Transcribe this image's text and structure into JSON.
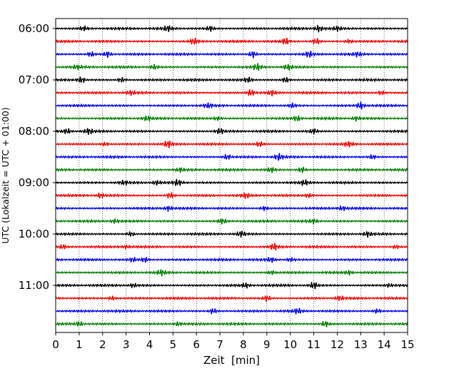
{
  "chart_data": {
    "type": "line",
    "xlabel": "Zeit  [min]",
    "ylabel": "UTC (Lokalzeit = UTC + 01:00)",
    "xlim": [
      0,
      15
    ],
    "x_ticks": [
      "0",
      "1",
      "2",
      "3",
      "4",
      "5",
      "6",
      "7",
      "8",
      "9",
      "10",
      "11",
      "12",
      "13",
      "14",
      "15"
    ],
    "y_ticks": [
      "06:00",
      "07:00",
      "08:00",
      "09:00",
      "10:00",
      "11:00"
    ],
    "row_interval_minutes": 15,
    "row_count": 24,
    "first_row_time": "06:00",
    "last_row_time": "11:45",
    "vertical_grid": "dotted",
    "colors": [
      "#000000",
      "#ff0000",
      "#0000ff",
      "#007f00"
    ],
    "series": [
      {
        "start": "06:00",
        "color": "#000000",
        "bursts": [
          [
            1.2,
            0.6
          ],
          [
            4.8,
            0.7
          ],
          [
            6.6,
            0.7
          ],
          [
            11.2,
            0.9
          ],
          [
            12.0,
            0.5
          ]
        ]
      },
      {
        "start": "06:15",
        "color": "#ff0000",
        "bursts": [
          [
            5.9,
            0.9
          ],
          [
            9.8,
            0.8
          ],
          [
            11.1,
            0.8
          ],
          [
            12.5,
            0.5
          ]
        ]
      },
      {
        "start": "06:30",
        "color": "#0000ff",
        "bursts": [
          [
            1.5,
            0.7
          ],
          [
            2.2,
            0.8
          ],
          [
            8.4,
            0.9
          ],
          [
            10.8,
            0.8
          ],
          [
            12.9,
            0.5
          ]
        ]
      },
      {
        "start": "06:45",
        "color": "#007f00",
        "bursts": [
          [
            0.9,
            0.5
          ],
          [
            4.2,
            0.6
          ],
          [
            8.6,
            0.8
          ],
          [
            9.9,
            0.7
          ]
        ]
      },
      {
        "start": "07:00",
        "color": "#000000",
        "bursts": [
          [
            1.1,
            0.8
          ],
          [
            2.8,
            0.6
          ],
          [
            8.2,
            0.7
          ],
          [
            9.8,
            0.8
          ]
        ]
      },
      {
        "start": "07:15",
        "color": "#ff0000",
        "bursts": [
          [
            3.2,
            0.5
          ],
          [
            8.3,
            1.0
          ],
          [
            9.2,
            0.6
          ],
          [
            13.9,
            0.6
          ]
        ]
      },
      {
        "start": "07:30",
        "color": "#0000ff",
        "bursts": [
          [
            6.5,
            0.6
          ],
          [
            10.1,
            0.6
          ],
          [
            13.0,
            1.0
          ]
        ]
      },
      {
        "start": "07:45",
        "color": "#007f00",
        "bursts": [
          [
            3.9,
            0.6
          ],
          [
            6.9,
            0.5
          ],
          [
            10.3,
            0.7
          ],
          [
            12.8,
            0.5
          ]
        ]
      },
      {
        "start": "08:00",
        "color": "#000000",
        "bursts": [
          [
            0.5,
            0.6
          ],
          [
            1.4,
            0.9
          ],
          [
            7.0,
            0.8
          ],
          [
            11.0,
            0.6
          ]
        ]
      },
      {
        "start": "08:15",
        "color": "#ff0000",
        "bursts": [
          [
            2.1,
            0.5
          ],
          [
            4.8,
            0.9
          ],
          [
            8.7,
            0.7
          ],
          [
            12.5,
            0.7
          ]
        ]
      },
      {
        "start": "08:30",
        "color": "#0000ff",
        "bursts": [
          [
            7.3,
            0.7
          ],
          [
            9.5,
            0.8
          ],
          [
            13.5,
            0.6
          ]
        ]
      },
      {
        "start": "08:45",
        "color": "#007f00",
        "bursts": [
          [
            5.3,
            0.5
          ],
          [
            9.2,
            0.7
          ],
          [
            10.5,
            0.8
          ]
        ]
      },
      {
        "start": "09:00",
        "color": "#000000",
        "bursts": [
          [
            2.9,
            0.5
          ],
          [
            4.3,
            0.6
          ],
          [
            5.2,
            0.8
          ],
          [
            10.6,
            0.6
          ]
        ]
      },
      {
        "start": "09:15",
        "color": "#ff0000",
        "bursts": [
          [
            1.9,
            0.6
          ],
          [
            4.9,
            0.8
          ],
          [
            8.1,
            0.6
          ],
          [
            10.8,
            0.6
          ]
        ]
      },
      {
        "start": "09:30",
        "color": "#0000ff",
        "bursts": [
          [
            4.8,
            0.7
          ],
          [
            8.9,
            0.6
          ],
          [
            12.2,
            0.6
          ]
        ]
      },
      {
        "start": "09:45",
        "color": "#007f00",
        "bursts": [
          [
            2.5,
            0.5
          ],
          [
            7.1,
            0.7
          ],
          [
            11.0,
            0.5
          ]
        ]
      },
      {
        "start": "10:00",
        "color": "#000000",
        "bursts": [
          [
            3.2,
            0.6
          ],
          [
            7.9,
            0.7
          ],
          [
            13.3,
            0.6
          ]
        ]
      },
      {
        "start": "10:15",
        "color": "#ff0000",
        "bursts": [
          [
            0.3,
            0.6
          ],
          [
            3.0,
            0.5
          ],
          [
            9.3,
            0.9
          ],
          [
            14.5,
            0.5
          ]
        ]
      },
      {
        "start": "10:30",
        "color": "#0000ff",
        "bursts": [
          [
            3.3,
            0.6
          ],
          [
            3.8,
            0.8
          ],
          [
            9.2,
            0.6
          ],
          [
            10.0,
            0.5
          ]
        ]
      },
      {
        "start": "10:45",
        "color": "#007f00",
        "bursts": [
          [
            4.5,
            0.6
          ],
          [
            9.2,
            0.6
          ],
          [
            12.5,
            0.5
          ]
        ]
      },
      {
        "start": "11:00",
        "color": "#000000",
        "bursts": [
          [
            3.3,
            0.5
          ],
          [
            8.1,
            0.6
          ],
          [
            11.0,
            0.9
          ],
          [
            14.2,
            0.5
          ]
        ]
      },
      {
        "start": "11:15",
        "color": "#ff0000",
        "bursts": [
          [
            2.4,
            0.5
          ],
          [
            9.0,
            0.7
          ],
          [
            12.1,
            0.6
          ]
        ]
      },
      {
        "start": "11:30",
        "color": "#0000ff",
        "bursts": [
          [
            6.7,
            0.7
          ],
          [
            10.3,
            0.6
          ],
          [
            13.7,
            0.6
          ]
        ]
      },
      {
        "start": "11:45",
        "color": "#007f00",
        "bursts": [
          [
            1.0,
            0.6
          ],
          [
            5.2,
            0.5
          ],
          [
            11.5,
            0.8
          ]
        ]
      }
    ]
  }
}
